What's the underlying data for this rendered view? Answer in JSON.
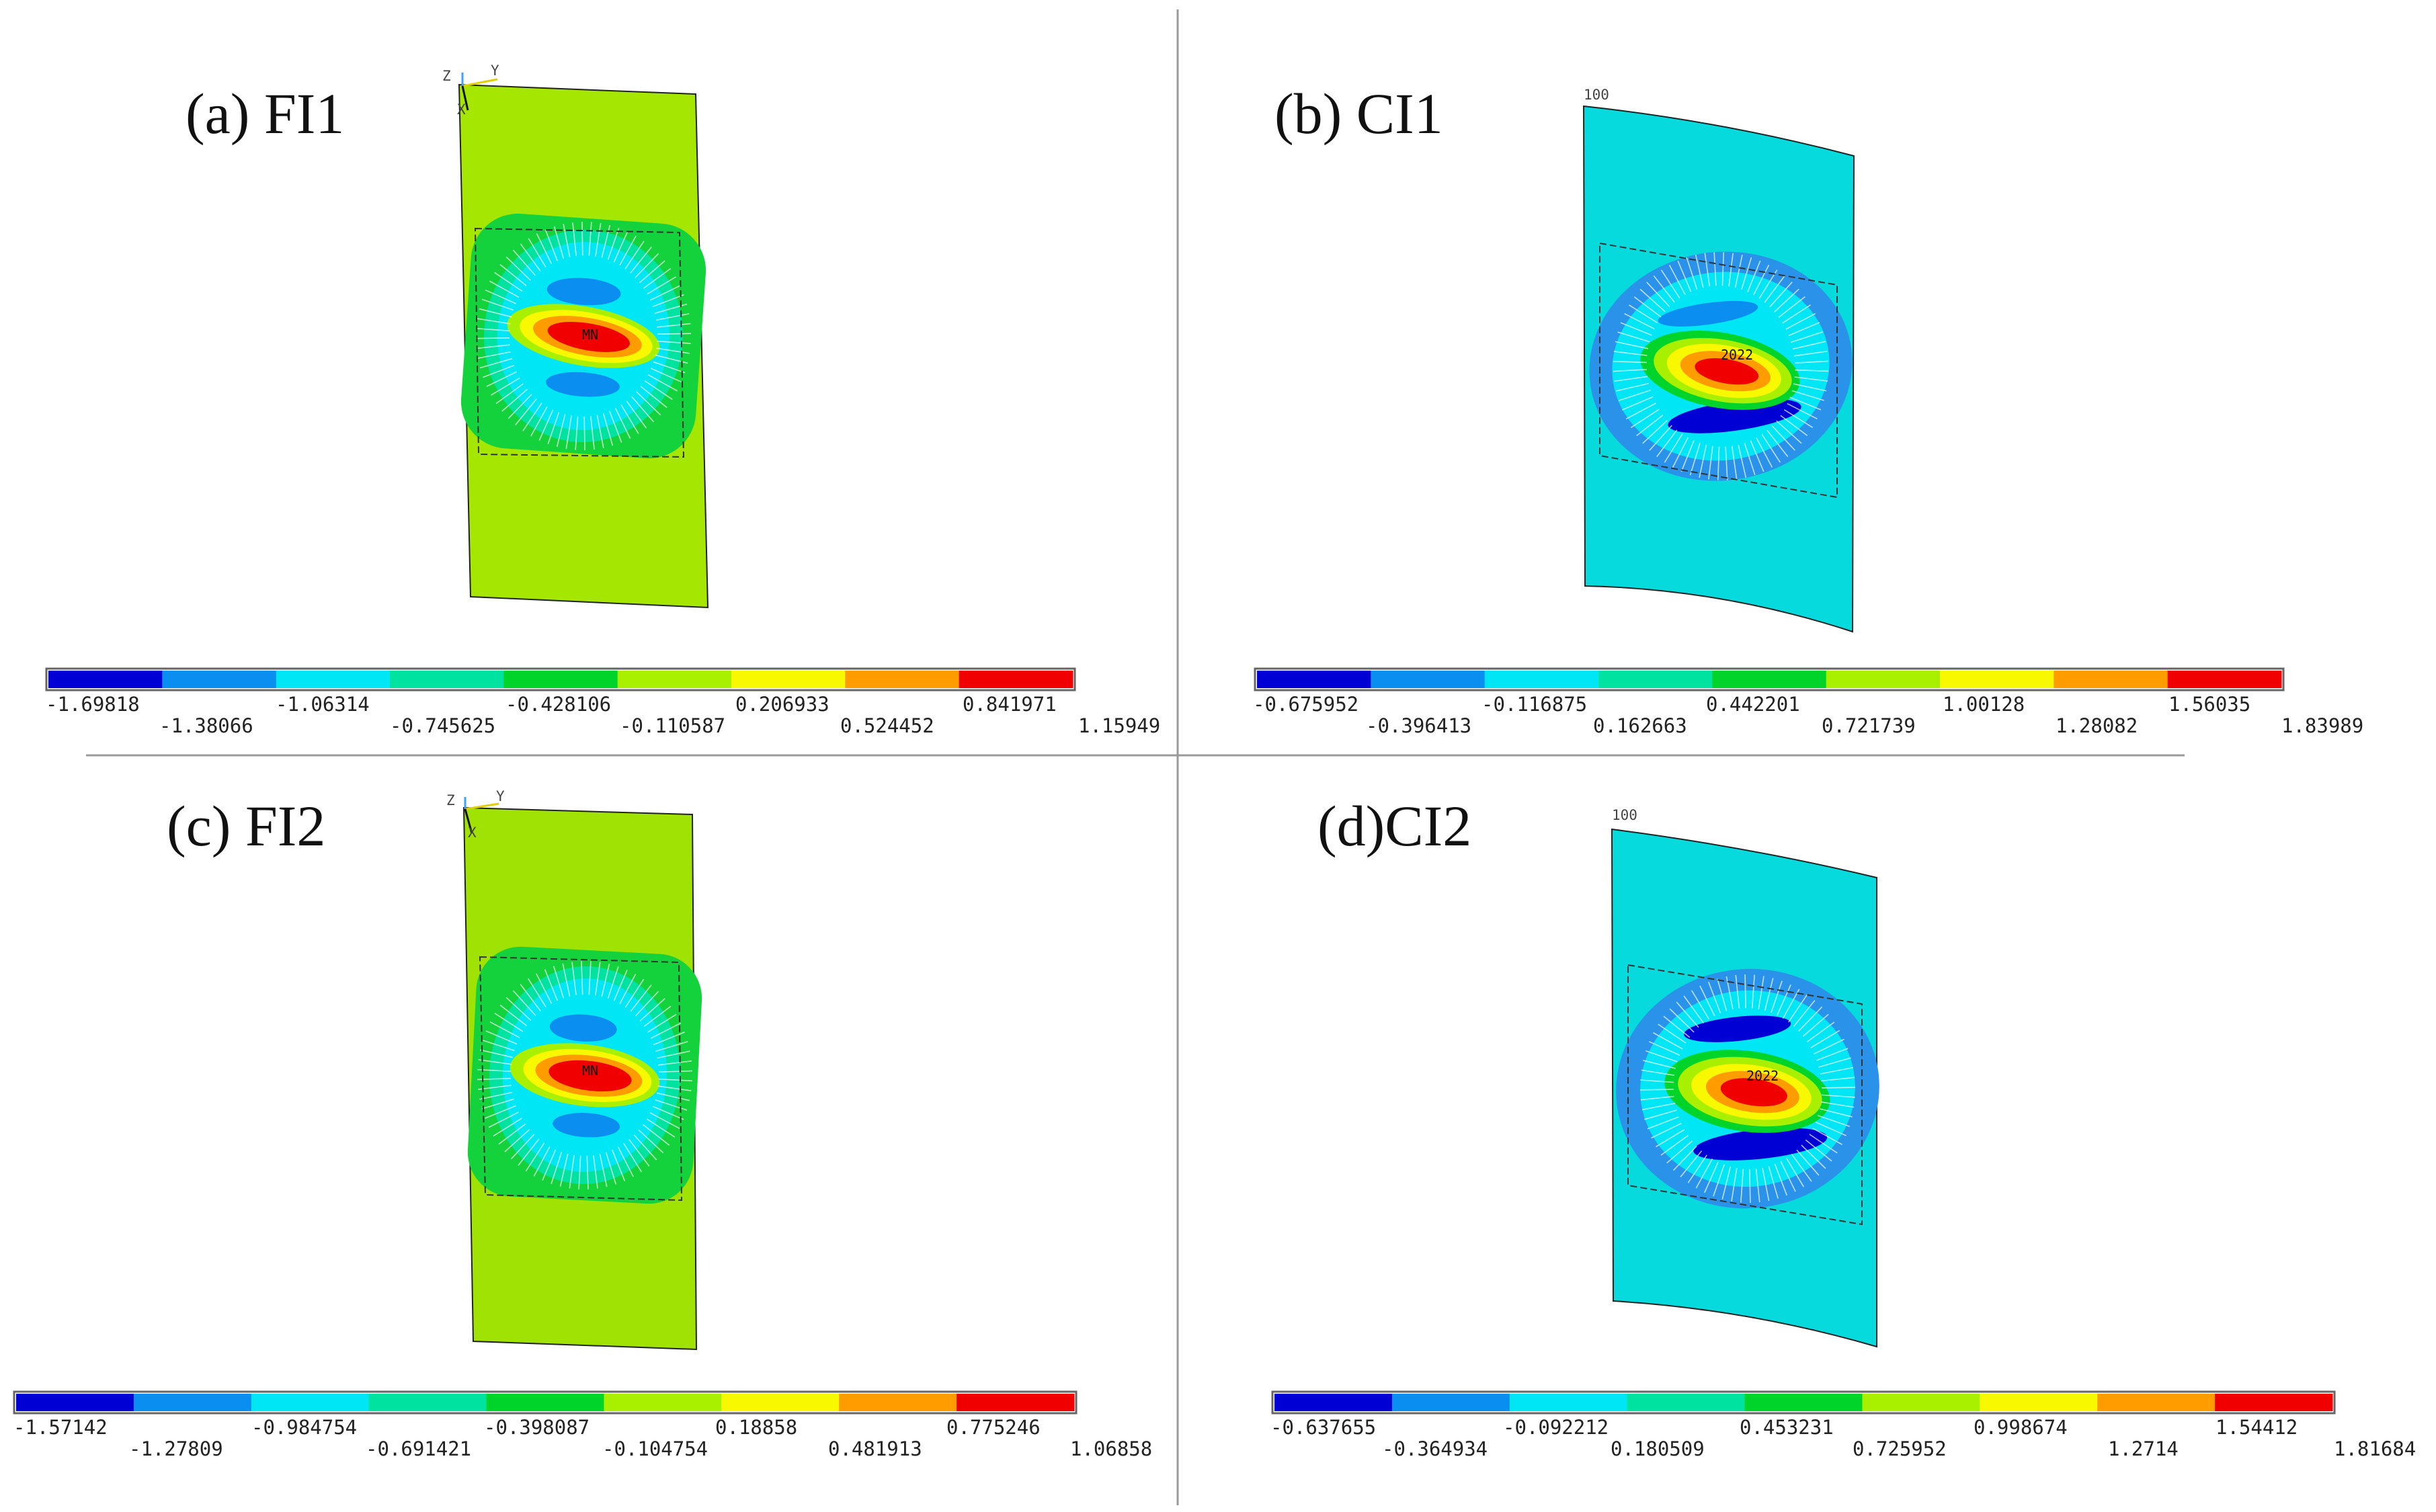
{
  "colors": [
    "#0000d4",
    "#0a8ef0",
    "#00e6f5",
    "#00e3a0",
    "#00d42a",
    "#a8f000",
    "#f8f800",
    "#ff9c00",
    "#f00000"
  ],
  "panels": [
    {
      "title": "(a) FI1",
      "background_color": "#a6e603",
      "outer_ring_color": "#14d23c",
      "legend_ticks_top": [
        "-1.69818",
        "-1.06314",
        "-0.428106",
        "0.206933",
        "0.841971"
      ],
      "legend_ticks_bottom": [
        "-1.38066",
        "-0.745625",
        "-0.110587",
        "0.524452",
        "1.15949"
      ],
      "node_label": "MN",
      "axes": [
        "Z",
        "Y",
        "X"
      ],
      "corner_label": ""
    },
    {
      "title": "(b)  CI1",
      "background_color": "#06dadc",
      "outer_ring_color": "#2a92e8",
      "legend_ticks_top": [
        "-0.675952",
        "-0.116875",
        "0.442201",
        "1.00128",
        "1.56035"
      ],
      "legend_ticks_bottom": [
        "-0.396413",
        "0.162663",
        "0.721739",
        "1.28082",
        "1.83989"
      ],
      "node_label": "2022",
      "axes": [],
      "corner_label": "100"
    },
    {
      "title": "(c)  FI2",
      "background_color": "#a0e203",
      "outer_ring_color": "#14d23c",
      "legend_ticks_top": [
        "-1.57142",
        "-0.984754",
        "-0.398087",
        "0.18858",
        "0.775246"
      ],
      "legend_ticks_bottom": [
        "-1.27809",
        "-0.691421",
        "-0.104754",
        "0.481913",
        "1.06858"
      ],
      "node_label": "MN",
      "axes": [
        "Z",
        "Y",
        "X"
      ],
      "corner_label": ""
    },
    {
      "title": "(d)CI2",
      "background_color": "#06dadc",
      "outer_ring_color": "#2a92e8",
      "legend_ticks_top": [
        "-0.637655",
        "-0.092212",
        "0.453231",
        "0.998674",
        "1.54412"
      ],
      "legend_ticks_bottom": [
        "-0.364934",
        "0.180509",
        "0.725952",
        "1.2714",
        "1.81684"
      ],
      "node_label": "2022",
      "axes": [],
      "corner_label": "100"
    }
  ]
}
